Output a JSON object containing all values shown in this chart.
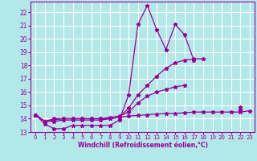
{
  "background_color": "#b2e8e8",
  "grid_color": "#ffffff",
  "line_color": "#990099",
  "marker": "*",
  "xlabel": "Windchill (Refroidissement éolien,°C)",
  "xlabel_color": "#990099",
  "tick_color": "#990099",
  "xlim": [
    -0.5,
    23.5
  ],
  "ylim": [
    13.0,
    22.8
  ],
  "yticks": [
    13,
    14,
    15,
    16,
    17,
    18,
    19,
    20,
    21,
    22
  ],
  "xticks": [
    0,
    1,
    2,
    3,
    4,
    5,
    6,
    7,
    8,
    9,
    10,
    11,
    12,
    13,
    14,
    15,
    16,
    17,
    18,
    19,
    20,
    21,
    22,
    23
  ],
  "series_x": [
    [
      0,
      1,
      2,
      3,
      4,
      5,
      6,
      7,
      8,
      9,
      10,
      11,
      12,
      13,
      14,
      15,
      16,
      17,
      18,
      19,
      20,
      21,
      22
    ],
    [
      0,
      1,
      2,
      3,
      4,
      5,
      6,
      7,
      8,
      9,
      10,
      11,
      12,
      13,
      14,
      15,
      16,
      17,
      18,
      19,
      20,
      21,
      22
    ],
    [
      0,
      1,
      2,
      3,
      4,
      5,
      6,
      7,
      8,
      9,
      10,
      11,
      12,
      13,
      14,
      15,
      16,
      17,
      18,
      19,
      20,
      21,
      22
    ],
    [
      0,
      1,
      2,
      3,
      4,
      5,
      6,
      7,
      8,
      9,
      10,
      11,
      12,
      13,
      14,
      15,
      16,
      17,
      18,
      19,
      20,
      21,
      22,
      23
    ]
  ],
  "series_y": [
    [
      14.3,
      13.6,
      13.25,
      13.25,
      13.5,
      13.5,
      13.5,
      13.5,
      13.5,
      13.9,
      15.8,
      21.1,
      22.5,
      20.7,
      19.2,
      21.1,
      20.3,
      18.4,
      null,
      null,
      null,
      null,
      14.6
    ],
    [
      14.3,
      13.8,
      13.8,
      13.9,
      13.9,
      13.9,
      13.9,
      13.9,
      14.0,
      14.1,
      14.8,
      15.8,
      16.5,
      17.2,
      17.8,
      18.2,
      18.4,
      18.5,
      18.5,
      null,
      null,
      null,
      14.7
    ],
    [
      14.3,
      13.8,
      13.9,
      14.0,
      14.0,
      14.0,
      14.0,
      14.0,
      14.1,
      14.2,
      14.5,
      15.2,
      15.7,
      16.0,
      16.2,
      16.4,
      16.5,
      null,
      null,
      null,
      null,
      null,
      14.9
    ],
    [
      14.3,
      13.8,
      14.0,
      14.0,
      14.0,
      14.0,
      14.0,
      14.0,
      14.0,
      14.1,
      14.2,
      14.25,
      14.3,
      14.35,
      14.4,
      14.4,
      14.45,
      14.5,
      14.5,
      14.5,
      14.5,
      14.5,
      14.5,
      14.6
    ]
  ]
}
